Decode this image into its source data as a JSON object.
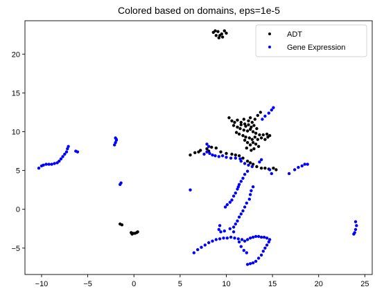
{
  "chart_data": {
    "type": "scatter",
    "title": "Colored based on domains, eps=1e-5",
    "xlabel": "",
    "ylabel": "",
    "xlim": [
      -11.8,
      25.8
    ],
    "ylim": [
      -8.4,
      24.3
    ],
    "xticks": [
      -10,
      -5,
      0,
      5,
      10,
      15,
      20,
      25
    ],
    "yticks": [
      -5,
      0,
      5,
      10,
      15,
      20
    ],
    "grid": false,
    "legend_position": "top-right",
    "series": [
      {
        "name": "ADT",
        "color": "#000000",
        "points": [
          [
            8.6,
            22.8
          ],
          [
            8.9,
            22.4
          ],
          [
            9.2,
            22.1
          ],
          [
            9.5,
            22.6
          ],
          [
            9.8,
            23.0
          ],
          [
            9.1,
            22.9
          ],
          [
            9.6,
            22.2
          ],
          [
            10.0,
            22.7
          ],
          [
            8.8,
            23.0
          ],
          [
            9.3,
            22.4
          ],
          [
            6.1,
            7.0
          ],
          [
            6.6,
            7.3
          ],
          [
            7.2,
            7.6
          ],
          [
            7.9,
            7.8
          ],
          [
            8.4,
            8.0
          ],
          [
            8.9,
            7.9
          ],
          [
            9.4,
            7.4
          ],
          [
            10.0,
            7.2
          ],
          [
            10.6,
            7.1
          ],
          [
            11.0,
            7.0
          ],
          [
            7.0,
            7.4
          ],
          [
            8.1,
            7.5
          ],
          [
            11.4,
            6.9
          ],
          [
            11.8,
            6.6
          ],
          [
            12.3,
            6.2
          ],
          [
            12.6,
            6.0
          ],
          [
            12.9,
            5.8
          ],
          [
            13.3,
            5.5
          ],
          [
            13.8,
            5.3
          ],
          [
            14.2,
            5.3
          ],
          [
            14.6,
            5.2
          ],
          [
            15.1,
            5.3
          ],
          [
            15.4,
            5.1
          ],
          [
            10.3,
            11.8
          ],
          [
            10.6,
            11.4
          ],
          [
            10.9,
            11.2
          ],
          [
            11.2,
            11.5
          ],
          [
            11.6,
            11.2
          ],
          [
            12.0,
            11.0
          ],
          [
            12.4,
            11.4
          ],
          [
            12.8,
            11.2
          ],
          [
            13.1,
            11.6
          ],
          [
            13.4,
            12.1
          ],
          [
            13.7,
            12.5
          ],
          [
            10.8,
            10.8
          ],
          [
            11.2,
            10.6
          ],
          [
            11.5,
            10.4
          ],
          [
            11.9,
            10.2
          ],
          [
            12.3,
            10.1
          ],
          [
            12.6,
            10.3
          ],
          [
            12.9,
            10.0
          ],
          [
            13.2,
            9.8
          ],
          [
            13.6,
            9.6
          ],
          [
            14.0,
            9.6
          ],
          [
            14.4,
            9.7
          ],
          [
            14.7,
            9.5
          ],
          [
            11.1,
            9.9
          ],
          [
            11.4,
            9.7
          ],
          [
            11.8,
            9.5
          ],
          [
            12.1,
            9.3
          ],
          [
            12.5,
            9.2
          ],
          [
            12.8,
            9.0
          ],
          [
            13.1,
            9.3
          ],
          [
            13.4,
            9.0
          ],
          [
            13.8,
            9.2
          ],
          [
            14.2,
            9.0
          ],
          [
            14.5,
            9.3
          ],
          [
            12.0,
            8.9
          ],
          [
            12.3,
            8.6
          ],
          [
            12.6,
            8.3
          ],
          [
            12.9,
            8.6
          ],
          [
            13.2,
            8.4
          ],
          [
            13.5,
            8.1
          ],
          [
            12.2,
            7.9
          ],
          [
            12.7,
            7.6
          ],
          [
            13.0,
            7.8
          ],
          [
            11.6,
            10.9
          ],
          [
            12.1,
            10.7
          ],
          [
            12.4,
            10.9
          ],
          [
            12.7,
            10.6
          ],
          [
            13.0,
            10.8
          ],
          [
            13.3,
            10.4
          ],
          [
            11.9,
            11.6
          ],
          [
            12.6,
            11.8
          ],
          [
            -1.5,
            -1.9
          ],
          [
            -1.3,
            -2.0
          ],
          [
            -0.3,
            -3.0
          ],
          [
            -0.1,
            -3.1
          ],
          [
            0.1,
            -3.1
          ],
          [
            0.3,
            -3.0
          ],
          [
            0.4,
            -2.9
          ],
          [
            -0.2,
            -3.2
          ]
        ]
      },
      {
        "name": "Gene Expression",
        "color": "#0000ff",
        "points": [
          [
            -10.3,
            5.3
          ],
          [
            -10.0,
            5.6
          ],
          [
            -9.8,
            5.7
          ],
          [
            -9.5,
            5.8
          ],
          [
            -9.2,
            5.8
          ],
          [
            -8.9,
            5.8
          ],
          [
            -8.6,
            5.9
          ],
          [
            -8.3,
            6.0
          ],
          [
            -8.1,
            6.2
          ],
          [
            -7.9,
            6.5
          ],
          [
            -7.7,
            6.8
          ],
          [
            -7.5,
            7.1
          ],
          [
            -7.3,
            7.4
          ],
          [
            -7.2,
            7.8
          ],
          [
            -7.1,
            8.1
          ],
          [
            -6.1,
            7.4
          ],
          [
            -6.3,
            7.5
          ],
          [
            -2.1,
            8.3
          ],
          [
            -2.0,
            8.6
          ],
          [
            -1.9,
            8.9
          ],
          [
            -2.0,
            9.2
          ],
          [
            -1.9,
            9.0
          ],
          [
            -1.5,
            3.2
          ],
          [
            -1.4,
            3.4
          ],
          [
            6.1,
            2.5
          ],
          [
            7.6,
            7.1
          ],
          [
            7.9,
            7.4
          ],
          [
            8.2,
            7.2
          ],
          [
            8.5,
            7.0
          ],
          [
            8.8,
            6.9
          ],
          [
            9.2,
            6.8
          ],
          [
            9.6,
            6.9
          ],
          [
            10.0,
            6.7
          ],
          [
            10.5,
            6.6
          ],
          [
            11.0,
            6.6
          ],
          [
            11.5,
            6.5
          ],
          [
            7.9,
            8.4
          ],
          [
            8.1,
            8.1
          ],
          [
            11.6,
            6.2
          ],
          [
            12.0,
            5.9
          ],
          [
            12.4,
            5.7
          ],
          [
            12.8,
            5.5
          ],
          [
            12.3,
            4.9
          ],
          [
            12.0,
            4.5
          ],
          [
            11.8,
            4.0
          ],
          [
            11.6,
            3.6
          ],
          [
            11.4,
            3.2
          ],
          [
            11.3,
            2.9
          ],
          [
            11.2,
            2.6
          ],
          [
            11.0,
            2.1
          ],
          [
            10.8,
            1.7
          ],
          [
            10.6,
            1.2
          ],
          [
            10.4,
            0.9
          ],
          [
            10.1,
            0.6
          ],
          [
            9.9,
            0.3
          ],
          [
            12.9,
            2.9
          ],
          [
            12.7,
            2.4
          ],
          [
            12.6,
            1.9
          ],
          [
            12.5,
            1.3
          ],
          [
            12.2,
            0.8
          ],
          [
            12.0,
            0.3
          ],
          [
            11.8,
            -0.2
          ],
          [
            11.6,
            -0.6
          ],
          [
            11.4,
            -1.0
          ],
          [
            11.2,
            -1.5
          ],
          [
            11.0,
            -1.9
          ],
          [
            10.8,
            -2.3
          ],
          [
            9.3,
            -2.1
          ],
          [
            9.2,
            -2.6
          ],
          [
            9.4,
            -2.9
          ],
          [
            9.8,
            -2.8
          ],
          [
            10.4,
            -2.5
          ],
          [
            10.8,
            -2.9
          ],
          [
            6.5,
            -5.6
          ],
          [
            6.9,
            -5.2
          ],
          [
            7.3,
            -4.9
          ],
          [
            7.7,
            -4.6
          ],
          [
            8.1,
            -4.3
          ],
          [
            8.5,
            -4.1
          ],
          [
            8.9,
            -3.9
          ],
          [
            9.3,
            -3.8
          ],
          [
            9.7,
            -3.7
          ],
          [
            10.1,
            -3.7
          ],
          [
            10.5,
            -3.6
          ],
          [
            10.9,
            -3.7
          ],
          [
            11.3,
            -3.8
          ],
          [
            11.7,
            -3.9
          ],
          [
            12.0,
            -4.1
          ],
          [
            12.3,
            -3.9
          ],
          [
            12.6,
            -3.7
          ],
          [
            12.9,
            -3.6
          ],
          [
            13.2,
            -3.5
          ],
          [
            13.5,
            -3.5
          ],
          [
            13.8,
            -3.6
          ],
          [
            14.1,
            -3.6
          ],
          [
            14.4,
            -3.7
          ],
          [
            14.7,
            -3.9
          ],
          [
            11.4,
            -4.2
          ],
          [
            11.6,
            -4.8
          ],
          [
            11.9,
            -5.3
          ],
          [
            12.2,
            -5.6
          ],
          [
            14.6,
            -4.2
          ],
          [
            14.4,
            -4.6
          ],
          [
            14.2,
            -5.0
          ],
          [
            14.0,
            -5.4
          ],
          [
            13.8,
            -5.9
          ],
          [
            13.5,
            -6.3
          ],
          [
            13.2,
            -6.7
          ],
          [
            12.9,
            -6.9
          ],
          [
            12.6,
            -7.0
          ],
          [
            12.3,
            -7.1
          ],
          [
            13.8,
            6.4
          ],
          [
            13.6,
            6.1
          ],
          [
            14.7,
            5.1
          ],
          [
            14.9,
            4.6
          ],
          [
            17.4,
            5.1
          ],
          [
            17.8,
            5.4
          ],
          [
            18.2,
            5.6
          ],
          [
            18.5,
            5.8
          ],
          [
            18.8,
            5.8
          ],
          [
            16.8,
            4.6
          ],
          [
            13.9,
            11.6
          ],
          [
            14.2,
            12.0
          ],
          [
            14.6,
            12.4
          ],
          [
            14.9,
            12.8
          ],
          [
            15.1,
            13.1
          ],
          [
            24.0,
            -1.6
          ],
          [
            24.1,
            -2.1
          ],
          [
            24.0,
            -2.6
          ],
          [
            23.9,
            -3.0
          ],
          [
            23.8,
            -3.2
          ]
        ]
      }
    ]
  }
}
